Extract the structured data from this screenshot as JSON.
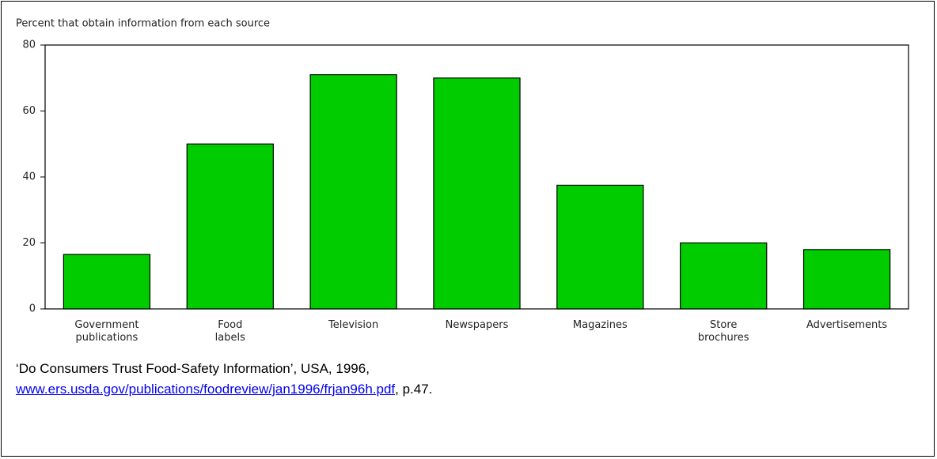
{
  "chart_data": {
    "type": "bar",
    "title": "Percent that obtain information from each source",
    "categories": [
      "Government publications",
      "Food labels",
      "Television",
      "Newspapers",
      "Magazines",
      "Store brochures",
      "Advertisements"
    ],
    "values": [
      16.5,
      50,
      71,
      70,
      37.5,
      20,
      18
    ],
    "color": "#00cc00",
    "ylim": [
      0,
      80
    ],
    "yticks": [
      0,
      20,
      40,
      60,
      80
    ],
    "grid": false
  },
  "caption": {
    "text": "‘Do Consumers Trust Food-Safety Information’, USA, 1996,",
    "link": "www.ers.usda.gov/publications/foodreview/jan1996/frjan96h.pdf",
    "suffix": ", p.47."
  }
}
